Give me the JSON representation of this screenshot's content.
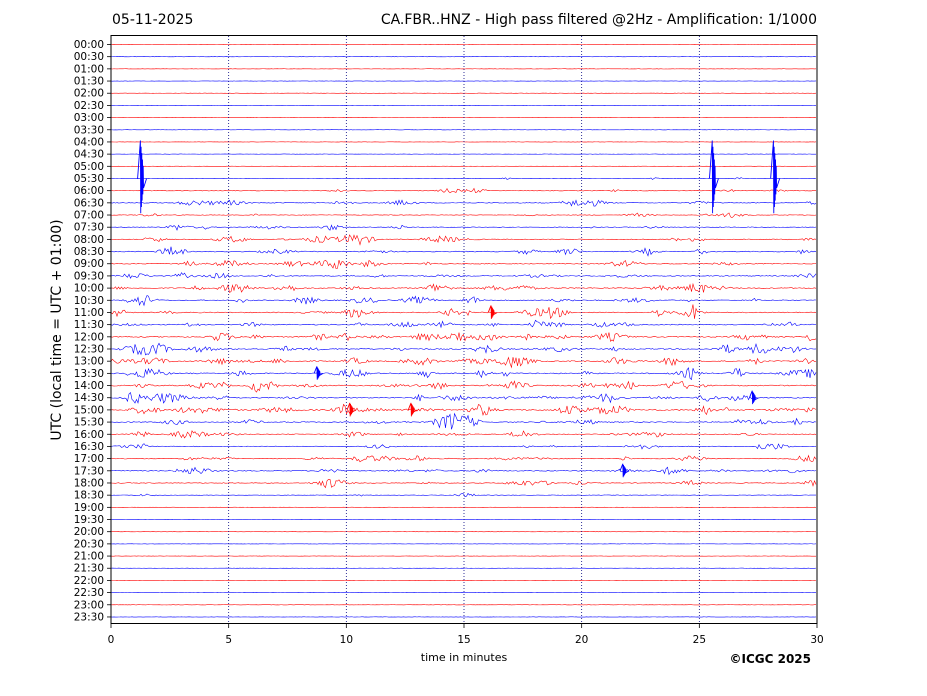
{
  "header": {
    "date": "05-11-2025",
    "title": "CA.FBR..HNZ - High pass filtered @2Hz - Amplification: 1/1000"
  },
  "footer": {
    "copyright": "©ICGC 2025"
  },
  "colors": {
    "trace_a": "#ff0000",
    "trace_b": "#0000ff",
    "grid": "#000080",
    "frame": "#000000"
  },
  "chart_data": {
    "type": "line",
    "xlabel": "time in minutes",
    "ylabel": "UTC (local time = UTC + 01:00)",
    "xlim": [
      0,
      30
    ],
    "xticks": [
      "0",
      "5",
      "10",
      "15",
      "20",
      "25",
      "30"
    ],
    "vertical_grid": "dotted at 5, 10, 15, 20, 25",
    "rows": [
      "00:00",
      "00:30",
      "01:00",
      "01:30",
      "02:00",
      "02:30",
      "03:00",
      "03:30",
      "04:00",
      "04:30",
      "05:00",
      "05:30",
      "06:00",
      "06:30",
      "07:00",
      "07:30",
      "08:00",
      "08:30",
      "09:00",
      "09:30",
      "10:00",
      "10:30",
      "11:00",
      "11:30",
      "12:00",
      "12:30",
      "13:00",
      "13:30",
      "14:00",
      "14:30",
      "15:00",
      "15:30",
      "16:00",
      "16:30",
      "17:00",
      "17:30",
      "18:00",
      "18:30",
      "19:00",
      "19:30",
      "20:00",
      "20:30",
      "21:00",
      "21:30",
      "22:00",
      "22:30",
      "23:00",
      "23:30"
    ],
    "row_colors": "alternating red (even rows) and blue (odd rows)",
    "activity": [
      0,
      0,
      0,
      0,
      0,
      0,
      0,
      0,
      0,
      0,
      0,
      1,
      2,
      3,
      2,
      3,
      4,
      4,
      4,
      4,
      5,
      5,
      5,
      5,
      6,
      6,
      6,
      6,
      6,
      6,
      8,
      5,
      4,
      3,
      4,
      4,
      3,
      1,
      0,
      0,
      0,
      0,
      0,
      0,
      0,
      0,
      0,
      0
    ],
    "events": [
      {
        "row": "05:30",
        "minute": 1.3,
        "amplitude": "very large"
      },
      {
        "row": "05:30",
        "minute": 25.6,
        "amplitude": "very large"
      },
      {
        "row": "05:30",
        "minute": 28.2,
        "amplitude": "very large"
      },
      {
        "row": "11:00",
        "minute": 16.2,
        "amplitude": "moderate"
      },
      {
        "row": "13:30",
        "minute": 8.8,
        "amplitude": "moderate"
      },
      {
        "row": "14:30",
        "minute": 27.3,
        "amplitude": "moderate"
      },
      {
        "row": "15:00",
        "minute": 10.2,
        "amplitude": "moderate"
      },
      {
        "row": "15:00",
        "minute": 12.8,
        "amplitude": "moderate"
      },
      {
        "row": "17:30",
        "minute": 21.8,
        "amplitude": "moderate"
      }
    ]
  }
}
